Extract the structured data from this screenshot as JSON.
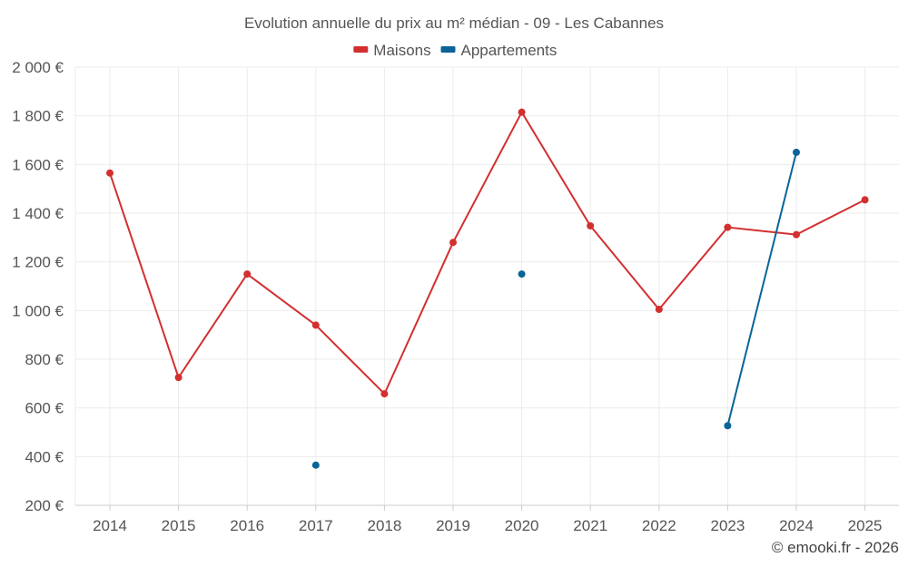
{
  "chart_data": {
    "type": "line",
    "title": "Evolution annuelle du prix au m² médian - 09 - Les Cabannes",
    "categories": [
      "2014",
      "2015",
      "2016",
      "2017",
      "2018",
      "2019",
      "2020",
      "2021",
      "2022",
      "2023",
      "2024",
      "2025"
    ],
    "series": [
      {
        "name": "Maisons",
        "color": "#d32f2f",
        "values": [
          1565,
          725,
          1150,
          940,
          658,
          1280,
          1815,
          1348,
          1005,
          1342,
          1312,
          1455
        ]
      },
      {
        "name": "Appartements",
        "color": "#0a6498",
        "values": [
          null,
          null,
          null,
          365,
          null,
          null,
          1150,
          null,
          null,
          527,
          1650,
          null
        ]
      }
    ],
    "ylim": [
      200,
      2000
    ],
    "yticks": [
      200,
      400,
      600,
      800,
      1000,
      1200,
      1400,
      1600,
      1800,
      2000
    ],
    "ytick_labels": [
      "200 €",
      "400 €",
      "600 €",
      "800 €",
      "1 000 €",
      "1 200 €",
      "1 400 €",
      "1 600 €",
      "1 800 €",
      "2 000 €"
    ],
    "xlabel": "",
    "ylabel": "",
    "grid": true,
    "legend_position": "top-center"
  },
  "credit": "© emooki.fr - 2026"
}
